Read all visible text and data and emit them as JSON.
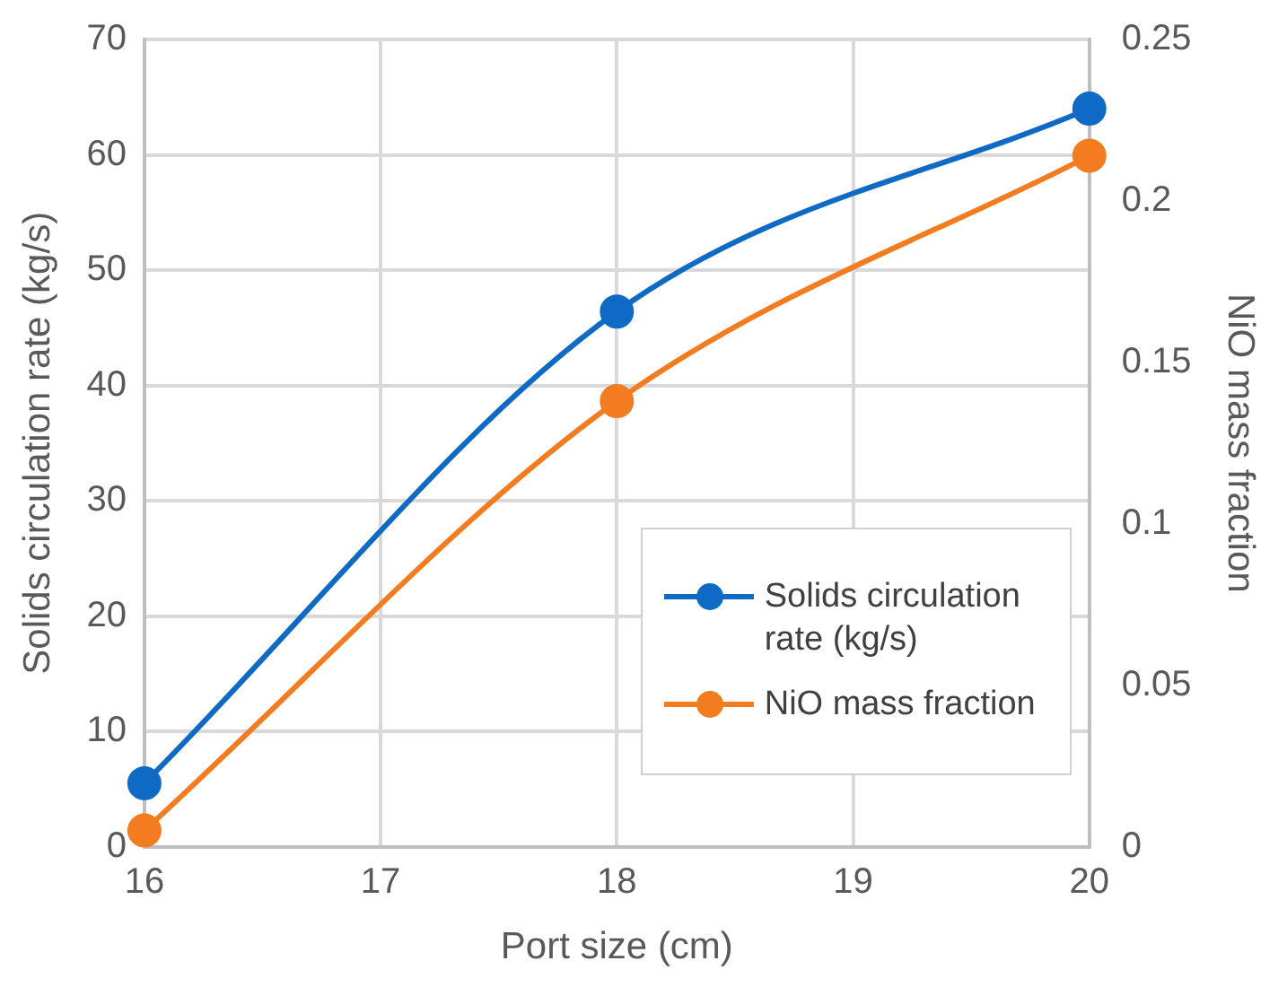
{
  "chart_data": {
    "type": "line",
    "xlabel": "Port size (cm)",
    "ylabel": "Solids circulation rate (kg/s)",
    "y2label": "NiO mass fraction",
    "x": [
      16,
      18,
      20
    ],
    "xlim": [
      16,
      20
    ],
    "xticks": [
      16,
      17,
      18,
      19,
      20
    ],
    "ylim": [
      0,
      70
    ],
    "yticks": [
      0,
      10,
      20,
      30,
      40,
      50,
      60,
      70
    ],
    "y2lim": [
      0,
      0.25
    ],
    "y2ticks": [
      0,
      0.05,
      0.1,
      0.15,
      0.2,
      0.25
    ],
    "series": [
      {
        "name": "Solids circulation rate (kg/s)",
        "color": "#0f6ac6",
        "values": [
          5.5,
          46.4,
          64.0
        ]
      },
      {
        "name": "NiO mass fraction",
        "color": "#f47c20",
        "values": [
          0.005,
          0.138,
          0.214
        ],
        "axis": "y2"
      }
    ],
    "grid": true,
    "legend": "bottom right",
    "marker": "circle",
    "line_style": "solid"
  }
}
